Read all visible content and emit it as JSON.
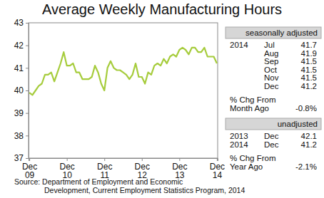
{
  "chart_data": {
    "type": "line",
    "title": "Average Weekly Manufacturing Hours",
    "categories": [
      "Dec 09",
      null,
      null,
      null,
      null,
      null,
      null,
      null,
      null,
      null,
      null,
      null,
      "Dec 10",
      null,
      null,
      null,
      null,
      null,
      null,
      null,
      null,
      null,
      null,
      null,
      "Dec 11",
      null,
      null,
      null,
      null,
      null,
      null,
      null,
      null,
      null,
      null,
      null,
      "Dec 12",
      null,
      null,
      null,
      null,
      null,
      null,
      null,
      null,
      null,
      null,
      null,
      "Dec 13",
      null,
      null,
      null,
      null,
      null,
      null,
      null,
      null,
      null,
      null,
      null,
      "Dec 14"
    ],
    "values": [
      39.9,
      39.8,
      40.0,
      40.2,
      40.3,
      40.7,
      40.7,
      40.8,
      40.4,
      40.8,
      41.2,
      41.7,
      41.1,
      41.1,
      41.2,
      40.8,
      40.8,
      40.5,
      40.5,
      40.5,
      40.6,
      41.1,
      40.8,
      40.3,
      40.0,
      41.0,
      41.3,
      41.0,
      40.9,
      40.9,
      40.8,
      40.7,
      40.5,
      40.7,
      41.2,
      40.6,
      40.6,
      40.3,
      40.8,
      40.7,
      41.1,
      41.2,
      41.1,
      41.4,
      41.2,
      41.5,
      41.6,
      41.5,
      41.8,
      41.9,
      41.8,
      41.6,
      41.9,
      41.9,
      41.7,
      41.7,
      41.9,
      41.5,
      41.5,
      41.5,
      41.2
    ],
    "color": "#a6cc3c",
    "ylim": [
      37,
      43
    ],
    "yticks": [
      37,
      38,
      39,
      40,
      41,
      42,
      43
    ],
    "grid": false,
    "panel": {
      "seasonally_adjusted": {
        "header": "seasonally adjusted",
        "year": "2014",
        "rows": [
          {
            "month": "Jul",
            "value": 41.7
          },
          {
            "month": "Aug",
            "value": 41.9
          },
          {
            "month": "Sep",
            "value": 41.5
          },
          {
            "month": "Oct",
            "value": 41.5
          },
          {
            "month": "Nov",
            "value": 41.5
          },
          {
            "month": "Dec",
            "value": 41.2
          }
        ],
        "change_label": [
          "% Chg From",
          "Month Ago"
        ],
        "change": {
          "value": -0.8,
          "label": "-0.8%"
        }
      },
      "unadjusted": {
        "header": "unadjusted",
        "rows": [
          {
            "year": "2013",
            "month": "Dec",
            "value": 42.1
          },
          {
            "year": "2014",
            "month": "Dec",
            "value": 41.2
          }
        ],
        "change_label": [
          "% Chg From",
          "Year Ago"
        ],
        "change": {
          "value": -2.1,
          "label": "-2.1%"
        }
      }
    },
    "source": [
      "Source: Department of Employment and Economic",
      "Development, Current Employment Statistics Program, 2014"
    ]
  }
}
